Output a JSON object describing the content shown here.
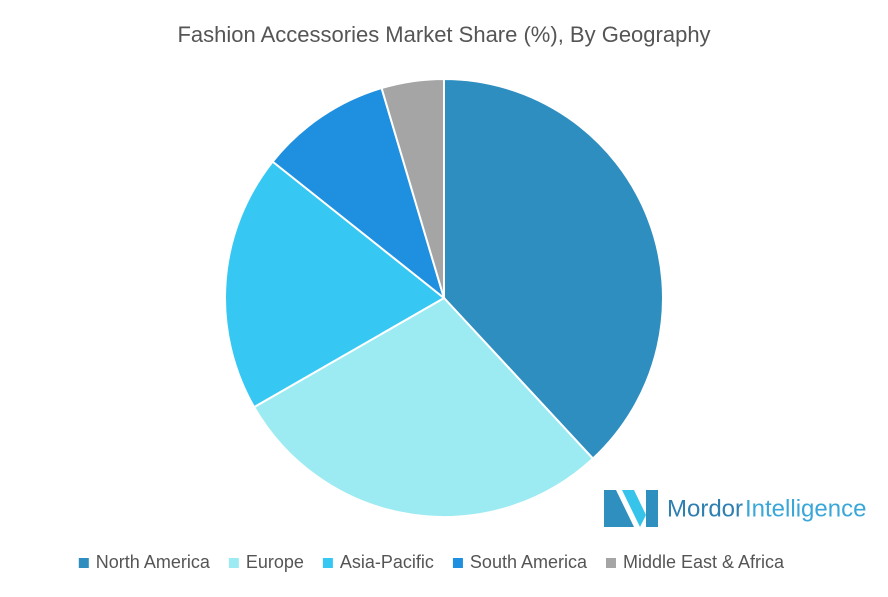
{
  "chart_data": {
    "type": "pie",
    "title": "Fashion Accessories Market Share (%), By Geography",
    "categories": [
      "North America",
      "Europe",
      "Asia-Pacific",
      "South America",
      "Middle East & Africa"
    ],
    "values": [
      38.1,
      28.6,
      19,
      9.7,
      4.6
    ],
    "colors": [
      "#2e8ec0",
      "#9debf2",
      "#36c8f2",
      "#1f8fe0",
      "#a5a5a5"
    ],
    "legend": "bottom"
  },
  "brand": {
    "name": "Mordor",
    "suffix": "Intelligence"
  }
}
